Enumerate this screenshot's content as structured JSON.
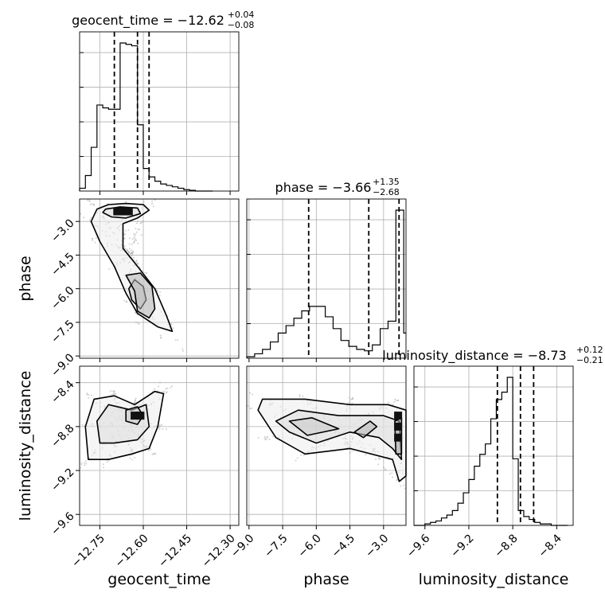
{
  "chart_data": {
    "type": "corner",
    "parameters": [
      "geocent_time",
      "phase",
      "luminosity_distance"
    ],
    "axis_labels": {
      "geocent_time": "geocent_time",
      "phase": "phase",
      "luminosity_distance": "luminosity_distance"
    },
    "titles": [
      {
        "param": "geocent_time",
        "text": "geocent_time = −12.62",
        "plus": "+0.04",
        "minus": "−0.08"
      },
      {
        "param": "phase",
        "text": "phase = −3.66",
        "plus": "+1.35",
        "minus": "−2.68"
      },
      {
        "param": "luminosity_distance",
        "text": "luminosity_distance = −8.73",
        "plus": "+0.12",
        "minus": "−0.21"
      }
    ],
    "ranges": {
      "geocent_time": [
        -12.82,
        -12.27
      ],
      "phase": [
        -9.1,
        -2.0
      ],
      "luminosity_distance": [
        -9.7,
        -8.25
      ]
    },
    "ticks": {
      "geocent_time": {
        "values": [
          -12.75,
          -12.6,
          -12.45,
          -12.3
        ],
        "labels": [
          "−12.75",
          "−12.60",
          "−12.45",
          "−12.30"
        ]
      },
      "phase": {
        "values": [
          -9.0,
          -7.5,
          -6.0,
          -4.5,
          -3.0
        ],
        "labels": [
          "−9.0",
          "−7.5",
          "−6.0",
          "−4.5",
          "−3.0"
        ]
      },
      "luminosity_distance": {
        "values": [
          -9.6,
          -9.2,
          -8.8,
          -8.4
        ],
        "labels": [
          "−9.6",
          "−9.2",
          "−8.8",
          "−8.4"
        ]
      }
    },
    "histograms": {
      "geocent_time": {
        "bin_edges": [
          -12.82,
          -12.8,
          -12.78,
          -12.76,
          -12.74,
          -12.72,
          -12.7,
          -12.68,
          -12.66,
          -12.64,
          -12.62,
          -12.6,
          -12.58,
          -12.56,
          -12.54,
          -12.52,
          -12.5,
          -12.48,
          -12.46,
          -12.44,
          -12.42,
          -12.4,
          -12.38,
          -12.36
        ],
        "counts": [
          0.02,
          0.11,
          0.31,
          0.61,
          0.59,
          0.58,
          0.58,
          1.05,
          1.04,
          1.03,
          0.47,
          0.16,
          0.1,
          0.07,
          0.05,
          0.04,
          0.03,
          0.02,
          0.01,
          0.005,
          0.0,
          0.0,
          0.0
        ],
        "quantiles": [
          -12.7,
          -12.62,
          -12.58
        ]
      },
      "phase": {
        "bin_edges": [
          -9.1,
          -8.75,
          -8.4,
          -8.05,
          -7.7,
          -7.35,
          -7.0,
          -6.65,
          -6.3,
          -5.95,
          -5.6,
          -5.25,
          -4.9,
          -4.55,
          -4.2,
          -3.85,
          -3.5,
          -3.15,
          -2.8,
          -2.45,
          -2.1,
          -2.0
        ],
        "counts": [
          0.01,
          0.03,
          0.06,
          0.11,
          0.17,
          0.22,
          0.27,
          0.32,
          0.35,
          0.35,
          0.28,
          0.2,
          0.12,
          0.08,
          0.06,
          0.05,
          0.09,
          0.2,
          0.25,
          1.0,
          0.17
        ],
        "quantiles": [
          -6.34,
          -3.66,
          -2.31
        ]
      },
      "luminosity_distance": {
        "bin_edges": [
          -9.7,
          -9.65,
          -9.6,
          -9.55,
          -9.5,
          -9.45,
          -9.4,
          -9.35,
          -9.3,
          -9.25,
          -9.2,
          -9.15,
          -9.1,
          -9.05,
          -9.0,
          -8.95,
          -8.9,
          -8.85,
          -8.8,
          -8.75,
          -8.7,
          -8.65,
          -8.6,
          -8.55,
          -8.5,
          -8.45,
          -8.4,
          -8.35,
          -8.3
        ],
        "counts": [
          0.0,
          0.0,
          0.01,
          0.02,
          0.03,
          0.05,
          0.07,
          0.1,
          0.15,
          0.22,
          0.31,
          0.4,
          0.48,
          0.55,
          0.72,
          0.85,
          0.9,
          1.0,
          0.45,
          0.1,
          0.06,
          0.04,
          0.02,
          0.01,
          0.01,
          0.0,
          0.0,
          0.0
        ],
        "quantiles": [
          -8.94,
          -8.73,
          -8.61
        ]
      }
    },
    "joint": [
      {
        "x": "geocent_time",
        "y": "phase",
        "contours": [
          [
            [
              -12.76,
              -2.45
            ],
            [
              -12.72,
              -2.25
            ],
            [
              -12.66,
              -2.2
            ],
            [
              -12.6,
              -2.25
            ],
            [
              -12.58,
              -2.5
            ],
            [
              -12.62,
              -2.85
            ],
            [
              -12.67,
              -3.1
            ],
            [
              -12.67,
              -4.2
            ],
            [
              -12.62,
              -5.0
            ],
            [
              -12.56,
              -6.0
            ],
            [
              -12.52,
              -7.2
            ],
            [
              -12.5,
              -7.9
            ],
            [
              -12.55,
              -7.7
            ],
            [
              -12.62,
              -7.1
            ],
            [
              -12.66,
              -6.2
            ],
            [
              -12.7,
              -5.0
            ],
            [
              -12.75,
              -3.9
            ],
            [
              -12.78,
              -3.0
            ]
          ],
          [
            [
              -12.73,
              -2.45
            ],
            [
              -12.68,
              -2.35
            ],
            [
              -12.62,
              -2.4
            ],
            [
              -12.61,
              -2.65
            ],
            [
              -12.66,
              -2.85
            ],
            [
              -12.71,
              -2.8
            ],
            [
              -12.74,
              -2.6
            ]
          ],
          [
            [
              -12.63,
              -5.6
            ],
            [
              -12.6,
              -5.9
            ],
            [
              -12.59,
              -6.5
            ],
            [
              -12.61,
              -6.9
            ],
            [
              -12.64,
              -6.5
            ],
            [
              -12.65,
              -6.0
            ]
          ],
          [
            [
              -12.61,
              -5.3
            ],
            [
              -12.57,
              -5.9
            ],
            [
              -12.56,
              -6.9
            ],
            [
              -12.58,
              -7.3
            ],
            [
              -12.62,
              -7.0
            ],
            [
              -12.63,
              -6.1
            ],
            [
              -12.66,
              -5.4
            ]
          ]
        ],
        "dense_cells": [
          [
            -12.69,
            -2.55
          ],
          [
            -12.67,
            -2.55
          ],
          [
            -12.65,
            -2.55
          ]
        ]
      },
      {
        "x": "geocent_time",
        "y": "luminosity_distance",
        "contours": [
          [
            [
              -12.79,
              -9.1
            ],
            [
              -12.8,
              -8.8
            ],
            [
              -12.77,
              -8.55
            ],
            [
              -12.7,
              -8.52
            ],
            [
              -12.63,
              -8.6
            ],
            [
              -12.56,
              -8.48
            ],
            [
              -12.53,
              -8.5
            ],
            [
              -12.55,
              -8.8
            ],
            [
              -12.58,
              -9.0
            ],
            [
              -12.64,
              -9.05
            ],
            [
              -12.72,
              -9.1
            ]
          ],
          [
            [
              -12.75,
              -8.95
            ],
            [
              -12.76,
              -8.75
            ],
            [
              -12.72,
              -8.6
            ],
            [
              -12.64,
              -8.65
            ],
            [
              -12.59,
              -8.6
            ],
            [
              -12.58,
              -8.8
            ],
            [
              -12.62,
              -8.92
            ],
            [
              -12.7,
              -8.95
            ]
          ],
          [
            [
              -12.66,
              -8.75
            ],
            [
              -12.66,
              -8.65
            ],
            [
              -12.62,
              -8.62
            ],
            [
              -12.6,
              -8.7
            ],
            [
              -12.62,
              -8.78
            ]
          ]
        ],
        "dense_cells": [
          [
            -12.63,
            -8.7
          ],
          [
            -12.61,
            -8.7
          ]
        ]
      },
      {
        "x": "phase",
        "y": "luminosity_distance",
        "contours": [
          [
            [
              -8.6,
              -8.65
            ],
            [
              -8.4,
              -8.55
            ],
            [
              -6.5,
              -8.55
            ],
            [
              -4.5,
              -8.6
            ],
            [
              -2.8,
              -8.6
            ],
            [
              -2.0,
              -8.65
            ],
            [
              -2.0,
              -9.25
            ],
            [
              -2.3,
              -9.3
            ],
            [
              -2.6,
              -9.1
            ],
            [
              -4.5,
              -9.0
            ],
            [
              -6.5,
              -9.05
            ],
            [
              -7.8,
              -8.9
            ]
          ],
          [
            [
              -7.8,
              -8.75
            ],
            [
              -6.8,
              -8.65
            ],
            [
              -5.0,
              -8.7
            ],
            [
              -3.0,
              -8.7
            ],
            [
              -2.3,
              -8.75
            ],
            [
              -2.2,
              -9.1
            ],
            [
              -2.6,
              -9.0
            ],
            [
              -3.2,
              -8.9
            ],
            [
              -4.5,
              -8.85
            ],
            [
              -6.0,
              -8.95
            ],
            [
              -7.2,
              -8.85
            ]
          ],
          [
            [
              -7.2,
              -8.75
            ],
            [
              -6.2,
              -8.72
            ],
            [
              -5.0,
              -8.82
            ],
            [
              -6.4,
              -8.88
            ]
          ],
          [
            [
              -4.3,
              -8.85
            ],
            [
              -3.6,
              -8.75
            ],
            [
              -3.3,
              -8.8
            ],
            [
              -3.9,
              -8.9
            ]
          ],
          [
            [
              -2.5,
              -8.75
            ],
            [
              -2.2,
              -8.72
            ],
            [
              -2.2,
              -9.05
            ],
            [
              -2.45,
              -9.05
            ]
          ]
        ],
        "dense_cells": [
          [
            -2.35,
            -8.7
          ],
          [
            -2.35,
            -8.8
          ],
          [
            -2.35,
            -8.9
          ]
        ]
      }
    ],
    "grid": true
  }
}
